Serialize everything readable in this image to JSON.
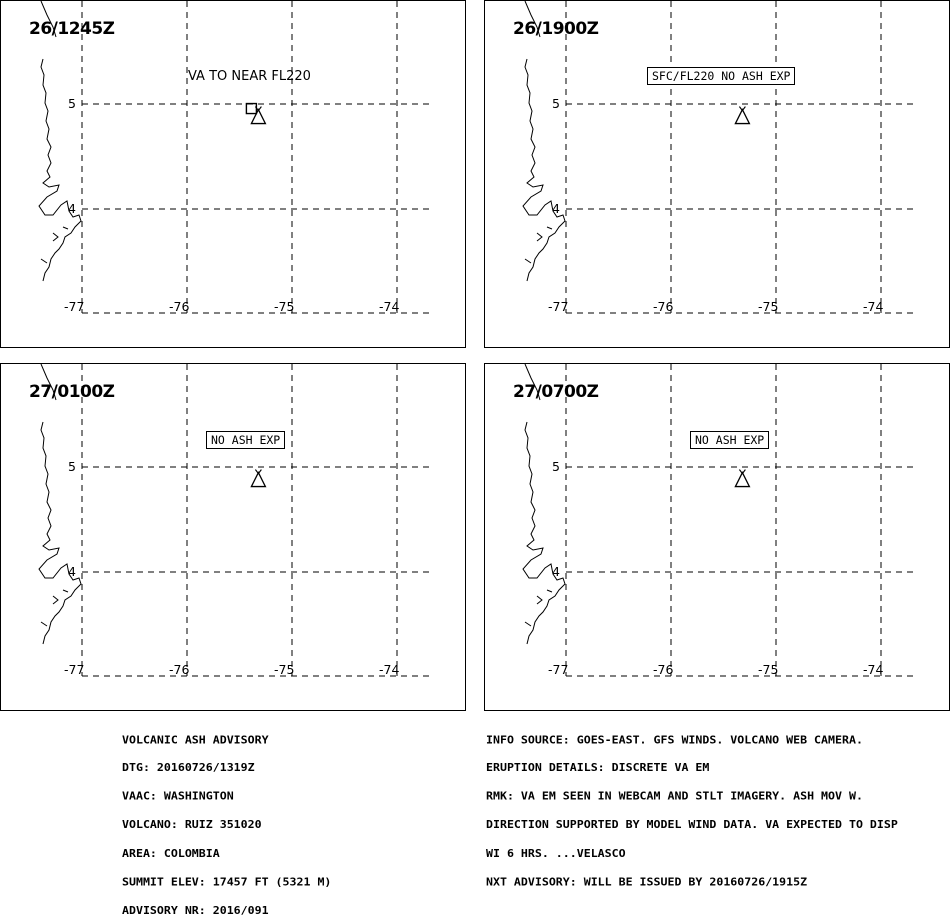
{
  "panels": [
    {
      "time": "26/1245Z",
      "label": "VA TO NEAR FL220",
      "label_boxed": false,
      "ash_area": true
    },
    {
      "time": "26/1900Z",
      "label": "SFC/FL220 NO ASH EXP",
      "label_boxed": true,
      "ash_area": false
    },
    {
      "time": "27/0100Z",
      "label": "NO ASH EXP",
      "label_boxed": true,
      "ash_area": false
    },
    {
      "time": "27/0700Z",
      "label": "NO ASH EXP",
      "label_boxed": true,
      "ash_area": false
    }
  ],
  "map": {
    "lat_labels": [
      "5",
      "4"
    ],
    "lon_labels": [
      "-77",
      "-76",
      "-75",
      "-74"
    ],
    "volcano_lon": -75.32,
    "volcano_lat": 4.89,
    "symbol": "volcano-icon"
  },
  "advisory_left": [
    "VOLCANIC ASH ADVISORY",
    "DTG: 20160726/1319Z",
    "VAAC: WASHINGTON",
    "VOLCANO: RUIZ 351020",
    "AREA: COLOMBIA",
    "SUMMIT ELEV: 17457 FT (5321 M)",
    "ADVISORY NR: 2016/091"
  ],
  "advisory_right": [
    "INFO SOURCE: GOES-EAST. GFS WINDS. VOLCANO WEB CAMERA.",
    "ERUPTION DETAILS: DISCRETE VA EM",
    "RMK: VA EM SEEN IN WEBCAM AND STLT IMAGERY. ASH MOV W.",
    "DIRECTION SUPPORTED BY MODEL WIND DATA. VA EXPECTED TO DISP",
    "WI 6 HRS. ...VELASCO",
    "NXT ADVISORY: WILL BE ISSUED BY 20160726/1915Z"
  ]
}
